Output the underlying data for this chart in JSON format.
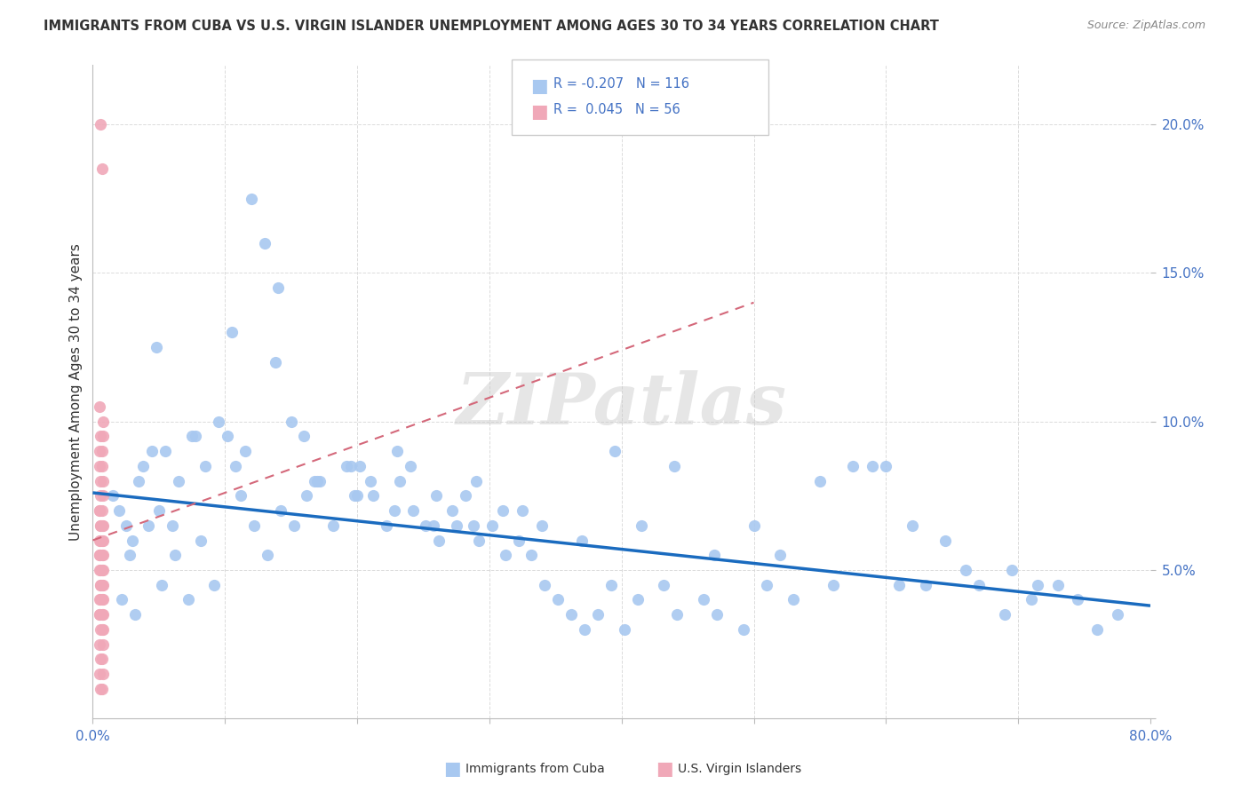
{
  "title": "IMMIGRANTS FROM CUBA VS U.S. VIRGIN ISLANDER UNEMPLOYMENT AMONG AGES 30 TO 34 YEARS CORRELATION CHART",
  "source": "Source: ZipAtlas.com",
  "ylabel": "Unemployment Among Ages 30 to 34 years",
  "xlim": [
    0,
    0.8
  ],
  "ylim": [
    0,
    0.22
  ],
  "x_tick_positions": [
    0.0,
    0.1,
    0.2,
    0.3,
    0.4,
    0.5,
    0.6,
    0.7,
    0.8
  ],
  "x_tick_labels": [
    "0.0%",
    "",
    "",
    "",
    "",
    "",
    "",
    "",
    "80.0%"
  ],
  "y_tick_positions": [
    0.0,
    0.05,
    0.1,
    0.15,
    0.2
  ],
  "y_tick_labels": [
    "",
    "5.0%",
    "10.0%",
    "15.0%",
    "20.0%"
  ],
  "legend_cuba_R": "-0.207",
  "legend_cuba_N": "116",
  "legend_vi_R": "0.045",
  "legend_vi_N": "56",
  "cuba_color": "#a8c8f0",
  "vi_color": "#f0a8b8",
  "cuba_line_color": "#1a6bbf",
  "vi_line_color": "#d4687a",
  "watermark": "ZIPatlas",
  "background_color": "#ffffff",
  "tick_color": "#4472c4",
  "grid_color": "#d8d8d8",
  "title_color": "#333333",
  "source_color": "#888888",
  "cuba_x": [
    0.02,
    0.025,
    0.03,
    0.015,
    0.035,
    0.028,
    0.045,
    0.038,
    0.05,
    0.06,
    0.055,
    0.075,
    0.085,
    0.065,
    0.095,
    0.12,
    0.105,
    0.13,
    0.14,
    0.115,
    0.15,
    0.17,
    0.16,
    0.195,
    0.21,
    0.2,
    0.24,
    0.23,
    0.26,
    0.29,
    0.275,
    0.31,
    0.34,
    0.325,
    0.37,
    0.395,
    0.415,
    0.44,
    0.47,
    0.5,
    0.52,
    0.55,
    0.575,
    0.6,
    0.62,
    0.645,
    0.67,
    0.695,
    0.715,
    0.745,
    0.022,
    0.032,
    0.042,
    0.052,
    0.062,
    0.072,
    0.082,
    0.092,
    0.102,
    0.112,
    0.122,
    0.132,
    0.142,
    0.152,
    0.162,
    0.172,
    0.182,
    0.192,
    0.202,
    0.212,
    0.222,
    0.232,
    0.242,
    0.252,
    0.262,
    0.272,
    0.282,
    0.292,
    0.302,
    0.312,
    0.322,
    0.332,
    0.342,
    0.352,
    0.362,
    0.372,
    0.382,
    0.392,
    0.402,
    0.412,
    0.432,
    0.442,
    0.462,
    0.472,
    0.492,
    0.51,
    0.53,
    0.56,
    0.59,
    0.61,
    0.63,
    0.66,
    0.69,
    0.71,
    0.73,
    0.76,
    0.775,
    0.048,
    0.078,
    0.108,
    0.138,
    0.168,
    0.198,
    0.228,
    0.258,
    0.288
  ],
  "cuba_y": [
    0.07,
    0.065,
    0.06,
    0.075,
    0.08,
    0.055,
    0.09,
    0.085,
    0.07,
    0.065,
    0.09,
    0.095,
    0.085,
    0.08,
    0.1,
    0.175,
    0.13,
    0.16,
    0.145,
    0.09,
    0.1,
    0.08,
    0.095,
    0.085,
    0.08,
    0.075,
    0.085,
    0.09,
    0.075,
    0.08,
    0.065,
    0.07,
    0.065,
    0.07,
    0.06,
    0.09,
    0.065,
    0.085,
    0.055,
    0.065,
    0.055,
    0.08,
    0.085,
    0.085,
    0.065,
    0.06,
    0.045,
    0.05,
    0.045,
    0.04,
    0.04,
    0.035,
    0.065,
    0.045,
    0.055,
    0.04,
    0.06,
    0.045,
    0.095,
    0.075,
    0.065,
    0.055,
    0.07,
    0.065,
    0.075,
    0.08,
    0.065,
    0.085,
    0.085,
    0.075,
    0.065,
    0.08,
    0.07,
    0.065,
    0.06,
    0.07,
    0.075,
    0.06,
    0.065,
    0.055,
    0.06,
    0.055,
    0.045,
    0.04,
    0.035,
    0.03,
    0.035,
    0.045,
    0.03,
    0.04,
    0.045,
    0.035,
    0.04,
    0.035,
    0.03,
    0.045,
    0.04,
    0.045,
    0.085,
    0.045,
    0.045,
    0.05,
    0.035,
    0.04,
    0.045,
    0.03,
    0.035,
    0.125,
    0.095,
    0.085,
    0.12,
    0.08,
    0.075,
    0.07,
    0.065,
    0.065
  ],
  "vi_x": [
    0.006,
    0.007,
    0.005,
    0.008,
    0.006,
    0.007,
    0.005,
    0.008,
    0.006,
    0.007,
    0.005,
    0.008,
    0.006,
    0.007,
    0.005,
    0.008,
    0.006,
    0.007,
    0.005,
    0.008,
    0.006,
    0.007,
    0.005,
    0.008,
    0.006,
    0.007,
    0.005,
    0.008,
    0.006,
    0.007,
    0.005,
    0.008,
    0.006,
    0.007,
    0.005,
    0.008,
    0.006,
    0.007,
    0.005,
    0.008,
    0.006,
    0.007,
    0.005,
    0.008,
    0.006,
    0.007,
    0.005,
    0.008,
    0.006,
    0.007,
    0.005,
    0.008,
    0.006,
    0.007,
    0.005,
    0.008
  ],
  "vi_y": [
    0.2,
    0.185,
    0.105,
    0.1,
    0.095,
    0.09,
    0.085,
    0.08,
    0.075,
    0.07,
    0.07,
    0.065,
    0.065,
    0.065,
    0.06,
    0.06,
    0.06,
    0.055,
    0.055,
    0.055,
    0.05,
    0.05,
    0.05,
    0.045,
    0.045,
    0.045,
    0.04,
    0.04,
    0.04,
    0.035,
    0.035,
    0.035,
    0.03,
    0.03,
    0.025,
    0.025,
    0.02,
    0.02,
    0.015,
    0.015,
    0.01,
    0.01,
    0.07,
    0.075,
    0.08,
    0.085,
    0.09,
    0.095,
    0.065,
    0.06,
    0.055,
    0.05,
    0.045,
    0.04,
    0.035,
    0.03
  ],
  "cuba_trendline_x": [
    0.0,
    0.8
  ],
  "cuba_trendline_y": [
    0.076,
    0.038
  ],
  "vi_trendline_x": [
    0.0,
    0.5
  ],
  "vi_trendline_y": [
    0.06,
    0.14
  ]
}
